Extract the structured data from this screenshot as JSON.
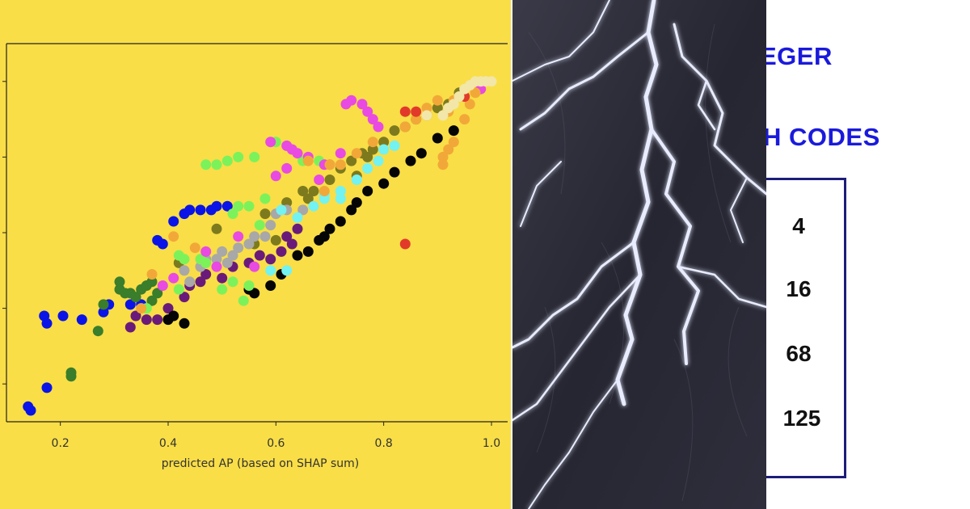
{
  "chart_data": {
    "type": "scatter",
    "title": "",
    "xlabel": "predicted AP (based on SHAP sum)",
    "ylabel": "",
    "xlim": [
      0.1,
      1.03
    ],
    "ylim": [
      0.0,
      1.0
    ],
    "xticks": [
      0.2,
      0.4,
      0.6,
      0.8,
      1.0
    ],
    "xtick_labels": [
      "0.2",
      "0.4",
      "0.6",
      "0.8",
      "1.0"
    ],
    "yticks": [
      0.1,
      0.3,
      0.5,
      0.7,
      0.9
    ],
    "ytick_labels": [
      "",
      "",
      "",
      "",
      ""
    ],
    "grid": false,
    "series": [
      {
        "name": "blue",
        "color": "#0a14e6",
        "points": [
          [
            0.14,
            0.04
          ],
          [
            0.145,
            0.03
          ],
          [
            0.175,
            0.09
          ],
          [
            0.17,
            0.28
          ],
          [
            0.175,
            0.26
          ],
          [
            0.205,
            0.28
          ],
          [
            0.24,
            0.27
          ],
          [
            0.28,
            0.29
          ],
          [
            0.29,
            0.31
          ],
          [
            0.33,
            0.31
          ],
          [
            0.38,
            0.48
          ],
          [
            0.39,
            0.47
          ],
          [
            0.41,
            0.53
          ],
          [
            0.43,
            0.55
          ],
          [
            0.44,
            0.56
          ],
          [
            0.46,
            0.56
          ],
          [
            0.48,
            0.56
          ],
          [
            0.49,
            0.57
          ],
          [
            0.51,
            0.57
          ],
          [
            0.35,
            0.31
          ]
        ]
      },
      {
        "name": "forest-green",
        "color": "#3a7d2a",
        "points": [
          [
            0.22,
            0.12
          ],
          [
            0.22,
            0.13
          ],
          [
            0.27,
            0.24
          ],
          [
            0.28,
            0.31
          ],
          [
            0.31,
            0.35
          ],
          [
            0.32,
            0.34
          ],
          [
            0.33,
            0.34
          ],
          [
            0.34,
            0.33
          ],
          [
            0.35,
            0.35
          ],
          [
            0.36,
            0.36
          ],
          [
            0.37,
            0.37
          ],
          [
            0.31,
            0.37
          ],
          [
            0.38,
            0.34
          ],
          [
            0.37,
            0.32
          ]
        ]
      },
      {
        "name": "purple",
        "color": "#6a1b7a",
        "points": [
          [
            0.33,
            0.25
          ],
          [
            0.34,
            0.28
          ],
          [
            0.36,
            0.27
          ],
          [
            0.38,
            0.27
          ],
          [
            0.4,
            0.3
          ],
          [
            0.43,
            0.33
          ],
          [
            0.44,
            0.36
          ],
          [
            0.46,
            0.37
          ],
          [
            0.5,
            0.38
          ],
          [
            0.55,
            0.42
          ],
          [
            0.59,
            0.43
          ],
          [
            0.61,
            0.45
          ],
          [
            0.62,
            0.49
          ],
          [
            0.64,
            0.51
          ],
          [
            0.63,
            0.47
          ],
          [
            0.57,
            0.44
          ],
          [
            0.47,
            0.39
          ],
          [
            0.52,
            0.41
          ]
        ]
      },
      {
        "name": "black",
        "color": "#050505",
        "points": [
          [
            0.4,
            0.27
          ],
          [
            0.41,
            0.28
          ],
          [
            0.43,
            0.26
          ],
          [
            0.56,
            0.34
          ],
          [
            0.59,
            0.36
          ],
          [
            0.61,
            0.39
          ],
          [
            0.64,
            0.44
          ],
          [
            0.66,
            0.45
          ],
          [
            0.68,
            0.48
          ],
          [
            0.69,
            0.49
          ],
          [
            0.7,
            0.51
          ],
          [
            0.72,
            0.53
          ],
          [
            0.74,
            0.56
          ],
          [
            0.75,
            0.58
          ],
          [
            0.77,
            0.61
          ],
          [
            0.8,
            0.63
          ],
          [
            0.82,
            0.66
          ],
          [
            0.85,
            0.69
          ],
          [
            0.87,
            0.71
          ],
          [
            0.9,
            0.75
          ],
          [
            0.93,
            0.77
          ],
          [
            0.55,
            0.35
          ]
        ]
      },
      {
        "name": "olive",
        "color": "#7d7a1e",
        "points": [
          [
            0.42,
            0.42
          ],
          [
            0.49,
            0.51
          ],
          [
            0.58,
            0.55
          ],
          [
            0.62,
            0.58
          ],
          [
            0.65,
            0.61
          ],
          [
            0.67,
            0.61
          ],
          [
            0.7,
            0.64
          ],
          [
            0.72,
            0.67
          ],
          [
            0.74,
            0.69
          ],
          [
            0.76,
            0.71
          ],
          [
            0.78,
            0.72
          ],
          [
            0.8,
            0.74
          ],
          [
            0.82,
            0.77
          ],
          [
            0.84,
            0.78
          ],
          [
            0.86,
            0.8
          ],
          [
            0.88,
            0.81
          ],
          [
            0.9,
            0.83
          ],
          [
            0.92,
            0.84
          ],
          [
            0.94,
            0.87
          ],
          [
            0.77,
            0.7
          ],
          [
            0.75,
            0.65
          ],
          [
            0.56,
            0.47
          ],
          [
            0.6,
            0.48
          ],
          [
            0.66,
            0.59
          ]
        ]
      },
      {
        "name": "gray",
        "color": "#a8a8a8",
        "points": [
          [
            0.44,
            0.37
          ],
          [
            0.46,
            0.41
          ],
          [
            0.47,
            0.43
          ],
          [
            0.49,
            0.43
          ],
          [
            0.5,
            0.45
          ],
          [
            0.52,
            0.44
          ],
          [
            0.53,
            0.46
          ],
          [
            0.55,
            0.47
          ],
          [
            0.56,
            0.49
          ],
          [
            0.58,
            0.49
          ],
          [
            0.59,
            0.52
          ],
          [
            0.6,
            0.55
          ],
          [
            0.51,
            0.42
          ],
          [
            0.43,
            0.4
          ],
          [
            0.62,
            0.56
          ],
          [
            0.65,
            0.56
          ]
        ]
      },
      {
        "name": "light-green",
        "color": "#7cf25a",
        "points": [
          [
            0.42,
            0.44
          ],
          [
            0.43,
            0.43
          ],
          [
            0.46,
            0.43
          ],
          [
            0.47,
            0.42
          ],
          [
            0.52,
            0.55
          ],
          [
            0.53,
            0.57
          ],
          [
            0.55,
            0.57
          ],
          [
            0.58,
            0.59
          ],
          [
            0.52,
            0.37
          ],
          [
            0.54,
            0.32
          ],
          [
            0.5,
            0.35
          ],
          [
            0.55,
            0.36
          ],
          [
            0.42,
            0.35
          ],
          [
            0.57,
            0.52
          ],
          [
            0.65,
            0.69
          ],
          [
            0.68,
            0.69
          ],
          [
            0.47,
            0.68
          ],
          [
            0.49,
            0.68
          ],
          [
            0.51,
            0.69
          ],
          [
            0.53,
            0.7
          ],
          [
            0.56,
            0.7
          ],
          [
            0.6,
            0.74
          ],
          [
            0.36,
            0.3
          ]
        ]
      },
      {
        "name": "magenta",
        "color": "#e84ae2",
        "points": [
          [
            0.47,
            0.45
          ],
          [
            0.49,
            0.41
          ],
          [
            0.53,
            0.49
          ],
          [
            0.56,
            0.41
          ],
          [
            0.59,
            0.74
          ],
          [
            0.62,
            0.73
          ],
          [
            0.64,
            0.71
          ],
          [
            0.66,
            0.7
          ],
          [
            0.69,
            0.68
          ],
          [
            0.72,
            0.71
          ],
          [
            0.7,
            0.68
          ],
          [
            0.68,
            0.64
          ],
          [
            0.6,
            0.65
          ],
          [
            0.62,
            0.67
          ],
          [
            0.63,
            0.72
          ],
          [
            0.73,
            0.84
          ],
          [
            0.74,
            0.85
          ],
          [
            0.76,
            0.84
          ],
          [
            0.78,
            0.8
          ],
          [
            0.77,
            0.82
          ],
          [
            0.79,
            0.78
          ],
          [
            0.98,
            0.88
          ],
          [
            0.41,
            0.38
          ],
          [
            0.39,
            0.36
          ]
        ]
      },
      {
        "name": "cyan",
        "color": "#73f2f2",
        "points": [
          [
            0.61,
            0.56
          ],
          [
            0.64,
            0.54
          ],
          [
            0.67,
            0.57
          ],
          [
            0.69,
            0.59
          ],
          [
            0.72,
            0.61
          ],
          [
            0.75,
            0.64
          ],
          [
            0.77,
            0.67
          ],
          [
            0.79,
            0.69
          ],
          [
            0.8,
            0.72
          ],
          [
            0.82,
            0.73
          ],
          [
            0.72,
            0.59
          ],
          [
            0.59,
            0.4
          ],
          [
            0.62,
            0.4
          ],
          [
            0.69,
            0.6
          ]
        ]
      },
      {
        "name": "orange",
        "color": "#f2a838",
        "points": [
          [
            0.66,
            0.69
          ],
          [
            0.7,
            0.68
          ],
          [
            0.72,
            0.68
          ],
          [
            0.75,
            0.71
          ],
          [
            0.78,
            0.74
          ],
          [
            0.84,
            0.78
          ],
          [
            0.86,
            0.8
          ],
          [
            0.88,
            0.83
          ],
          [
            0.9,
            0.85
          ],
          [
            0.91,
            0.68
          ],
          [
            0.91,
            0.7
          ],
          [
            0.92,
            0.72
          ],
          [
            0.93,
            0.74
          ],
          [
            0.95,
            0.8
          ],
          [
            0.96,
            0.84
          ],
          [
            0.97,
            0.87
          ],
          [
            0.93,
            0.85
          ],
          [
            0.69,
            0.61
          ],
          [
            0.92,
            0.82
          ],
          [
            0.96,
            0.89
          ],
          [
            0.45,
            0.46
          ],
          [
            0.35,
            0.3
          ],
          [
            0.41,
            0.49
          ],
          [
            0.37,
            0.39
          ]
        ]
      },
      {
        "name": "red",
        "color": "#e23a2a",
        "points": [
          [
            0.84,
            0.47
          ],
          [
            0.95,
            0.86
          ],
          [
            0.84,
            0.82
          ],
          [
            0.86,
            0.82
          ]
        ]
      },
      {
        "name": "cream",
        "color": "#f2e6a8",
        "points": [
          [
            0.95,
            0.88
          ],
          [
            0.96,
            0.89
          ],
          [
            0.97,
            0.9
          ],
          [
            0.98,
            0.9
          ],
          [
            0.99,
            0.9
          ],
          [
            1.0,
            0.9
          ],
          [
            0.93,
            0.84
          ],
          [
            0.94,
            0.86
          ],
          [
            0.92,
            0.83
          ],
          [
            0.88,
            0.81
          ],
          [
            0.91,
            0.81
          ]
        ]
      }
    ]
  },
  "right_panel": {
    "heading1": "EGER",
    "heading2": "H CODES",
    "codes": [
      "4",
      "16",
      "68",
      "125"
    ]
  }
}
